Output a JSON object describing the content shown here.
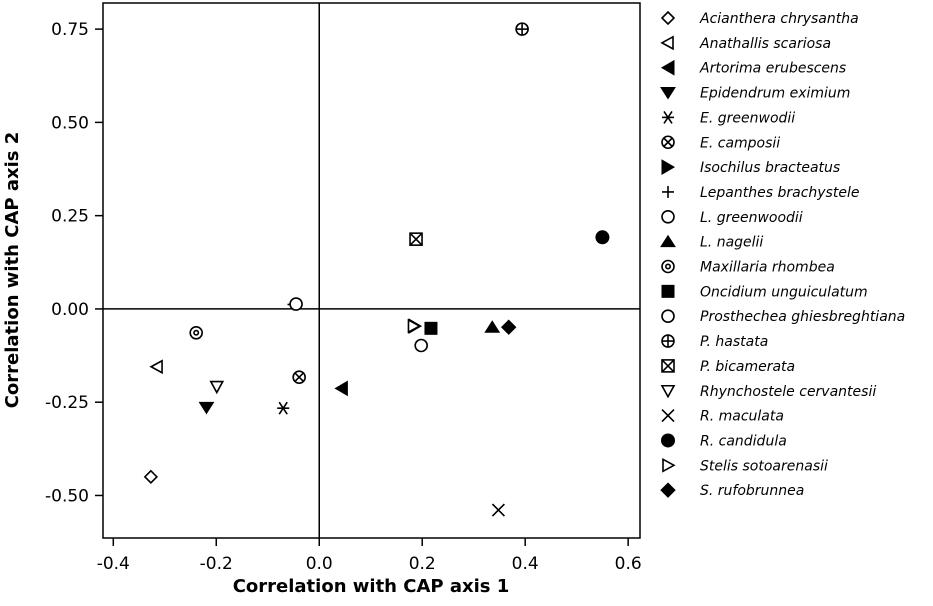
{
  "chart_data": {
    "type": "scatter",
    "xlabel": "Correlation with CAP axis 1",
    "ylabel": "Correlation with CAP axis 2",
    "xlim": [
      -0.42,
      0.623
    ],
    "ylim": [
      -0.614,
      0.82
    ],
    "xticks": [
      -0.4,
      -0.2,
      0.0,
      0.2,
      0.4,
      0.6
    ],
    "xtick_labels": [
      "-0.4",
      "-0.2",
      "0.0",
      "0.2",
      "0.4",
      "0.6"
    ],
    "yticks": [
      -0.5,
      -0.25,
      0.0,
      0.25,
      0.5,
      0.75
    ],
    "ytick_labels": [
      "-0.50",
      "-0.25",
      "0.00",
      "0.25",
      "0.50",
      "0.75"
    ],
    "reference_lines": {
      "x": 0,
      "y": 0
    },
    "grid": false,
    "legend_position": "right",
    "series": [
      {
        "name": "Acianthera chrysantha",
        "marker": "diamond-open",
        "x": -0.327,
        "y": -0.45
      },
      {
        "name": "Anathallis scariosa",
        "marker": "triangle-left-open",
        "x": -0.315,
        "y": -0.155
      },
      {
        "name": "Artorima erubescens",
        "marker": "triangle-left-filled",
        "x": 0.043,
        "y": -0.213
      },
      {
        "name": "Epidendrum eximium",
        "marker": "triangle-down-filled",
        "x": -0.219,
        "y": -0.264
      },
      {
        "name": "E. greenwodii",
        "marker": "asterisk",
        "x": -0.07,
        "y": -0.266
      },
      {
        "name": "E. camposii",
        "marker": "circle-x",
        "x": -0.039,
        "y": -0.183
      },
      {
        "name": "Isochilus bracteatus",
        "marker": "triangle-right-filled",
        "x": 0.186,
        "y": -0.046
      },
      {
        "name": "Lepanthes brachystele",
        "marker": "plus",
        "x": -0.05,
        "y": 0.012
      },
      {
        "name": "L. greenwoodii",
        "marker": "circle-open",
        "x": -0.045,
        "y": 0.013
      },
      {
        "name": "L. nagelii",
        "marker": "triangle-up-filled",
        "x": 0.336,
        "y": -0.049
      },
      {
        "name": "Maxillaria rhombea",
        "marker": "circle-dot",
        "x": -0.239,
        "y": -0.064
      },
      {
        "name": "Oncidium unguiculatum",
        "marker": "square-filled",
        "x": 0.217,
        "y": -0.052
      },
      {
        "name": "Prosthechea ghiesbreghtiana",
        "marker": "circle-open",
        "x": 0.198,
        "y": -0.098
      },
      {
        "name": "P. hastata",
        "marker": "circle-plus",
        "x": 0.394,
        "y": 0.75
      },
      {
        "name": "P. bicamerata",
        "marker": "square-x",
        "x": 0.188,
        "y": 0.187
      },
      {
        "name": "Rhynchostele cervantesii",
        "marker": "triangle-down-open",
        "x": -0.199,
        "y": -0.208
      },
      {
        "name": "R. maculata",
        "marker": "cross",
        "x": 0.348,
        "y": -0.539
      },
      {
        "name": "R. candidula",
        "marker": "circle-filled",
        "x": 0.55,
        "y": 0.192
      },
      {
        "name": "Stelis sotoarenasii",
        "marker": "triangle-right-open",
        "x": 0.183,
        "y": -0.046
      },
      {
        "name": "S. rufobrunnea",
        "marker": "diamond-filled",
        "x": 0.368,
        "y": -0.049
      }
    ]
  }
}
